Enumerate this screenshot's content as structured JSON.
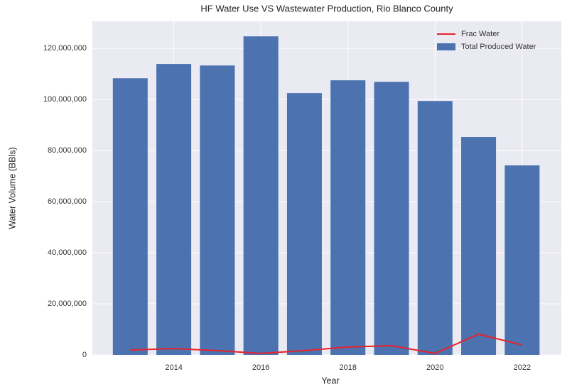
{
  "chart_data": {
    "type": "bar_line",
    "title": "HF Water Use VS Wastewater Production, Rio Blanco County",
    "x_label": "Year",
    "y_label": "Water Volume (BBls)",
    "x": [
      2013,
      2014,
      2015,
      2016,
      2017,
      2018,
      2019,
      2020,
      2021,
      2022
    ],
    "series": [
      {
        "name": "Frac Water",
        "kind": "line",
        "color": "#e8222b",
        "values": [
          1900000,
          2500000,
          1700000,
          600000,
          1700000,
          3100000,
          3600000,
          600000,
          8100000,
          3900000
        ]
      },
      {
        "name": "Total Produced Water",
        "kind": "bar",
        "color": "#4c72b0",
        "values": [
          108300000,
          113900000,
          113300000,
          124700000,
          102500000,
          107500000,
          106900000,
          99400000,
          85300000,
          74200000
        ]
      }
    ],
    "xlim": [
      2012.13,
      2022.9
    ],
    "xticks": [
      2014,
      2016,
      2018,
      2020,
      2022
    ],
    "ylim": [
      0,
      130600000
    ],
    "yticks": [
      0,
      {
        "value": 20000000,
        "label": "20,000,000"
      },
      {
        "value": 40000000,
        "label": "40,000,000"
      },
      {
        "value": 60000000,
        "label": "60,000,000"
      },
      {
        "value": 80000000,
        "label": "80,000,000"
      },
      {
        "value": 100000000,
        "label": "100,000,000"
      },
      {
        "value": 120000000,
        "label": "120,000,000"
      }
    ],
    "grid": true,
    "legend": "upper right",
    "background": "#eaeaf2"
  }
}
